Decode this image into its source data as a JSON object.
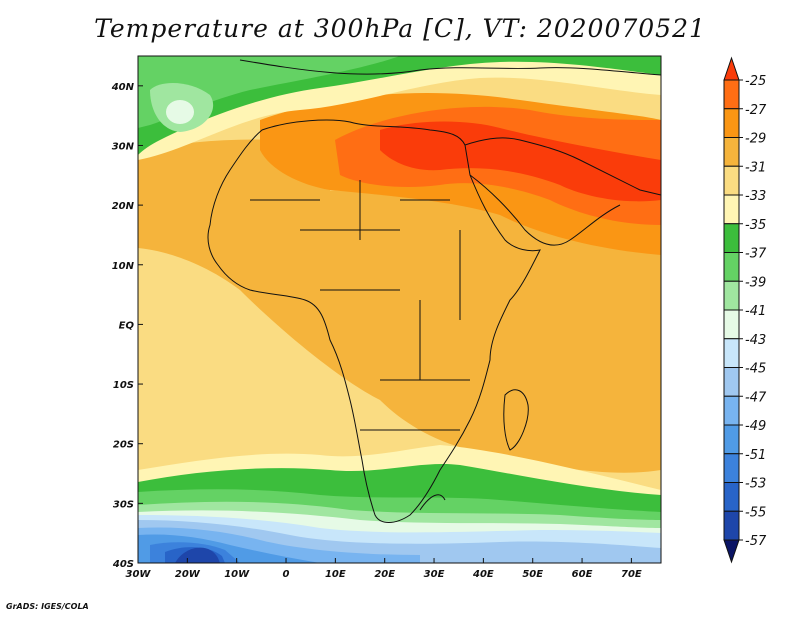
{
  "title": "Temperature at 300hPa [C], VT: 2020070521",
  "credit": "GrADS: IGES/COLA",
  "map": {
    "lon_range": [
      -30,
      76
    ],
    "lat_range": [
      -40,
      45
    ],
    "lon_ticks": [
      {
        "lon": -30,
        "label": "30W"
      },
      {
        "lon": -20,
        "label": "20W"
      },
      {
        "lon": -10,
        "label": "10W"
      },
      {
        "lon": 0,
        "label": "0"
      },
      {
        "lon": 10,
        "label": "10E"
      },
      {
        "lon": 20,
        "label": "20E"
      },
      {
        "lon": 30,
        "label": "30E"
      },
      {
        "lon": 40,
        "label": "40E"
      },
      {
        "lon": 50,
        "label": "50E"
      },
      {
        "lon": 60,
        "label": "60E"
      },
      {
        "lon": 70,
        "label": "70E"
      }
    ],
    "lat_ticks": [
      {
        "lat": 40,
        "label": "40N"
      },
      {
        "lat": 30,
        "label": "30N"
      },
      {
        "lat": 20,
        "label": "20N"
      },
      {
        "lat": 10,
        "label": "10N"
      },
      {
        "lat": 0,
        "label": "EQ"
      },
      {
        "lat": -10,
        "label": "10S"
      },
      {
        "lat": -20,
        "label": "20S"
      },
      {
        "lat": -30,
        "label": "30S"
      },
      {
        "lat": -40,
        "label": "40S"
      }
    ]
  },
  "colorbar": {
    "unit": "C",
    "levels": [
      -25,
      -27,
      -29,
      -31,
      -33,
      -35,
      -37,
      -39,
      -41,
      -43,
      -45,
      -47,
      -49,
      -51,
      -53,
      -55,
      -57
    ],
    "colors": [
      "#fa3c0a",
      "#ff6e14",
      "#fa9614",
      "#f5b43c",
      "#fadc82",
      "#fff5b4",
      "#3cbe3c",
      "#64d264",
      "#a0e6a0",
      "#e6fae6",
      "#c8e6fa",
      "#a0c8f0",
      "#78b4f0",
      "#509be6",
      "#3c82dc",
      "#2864c8",
      "#1e46aa",
      "#0a1464"
    ]
  }
}
